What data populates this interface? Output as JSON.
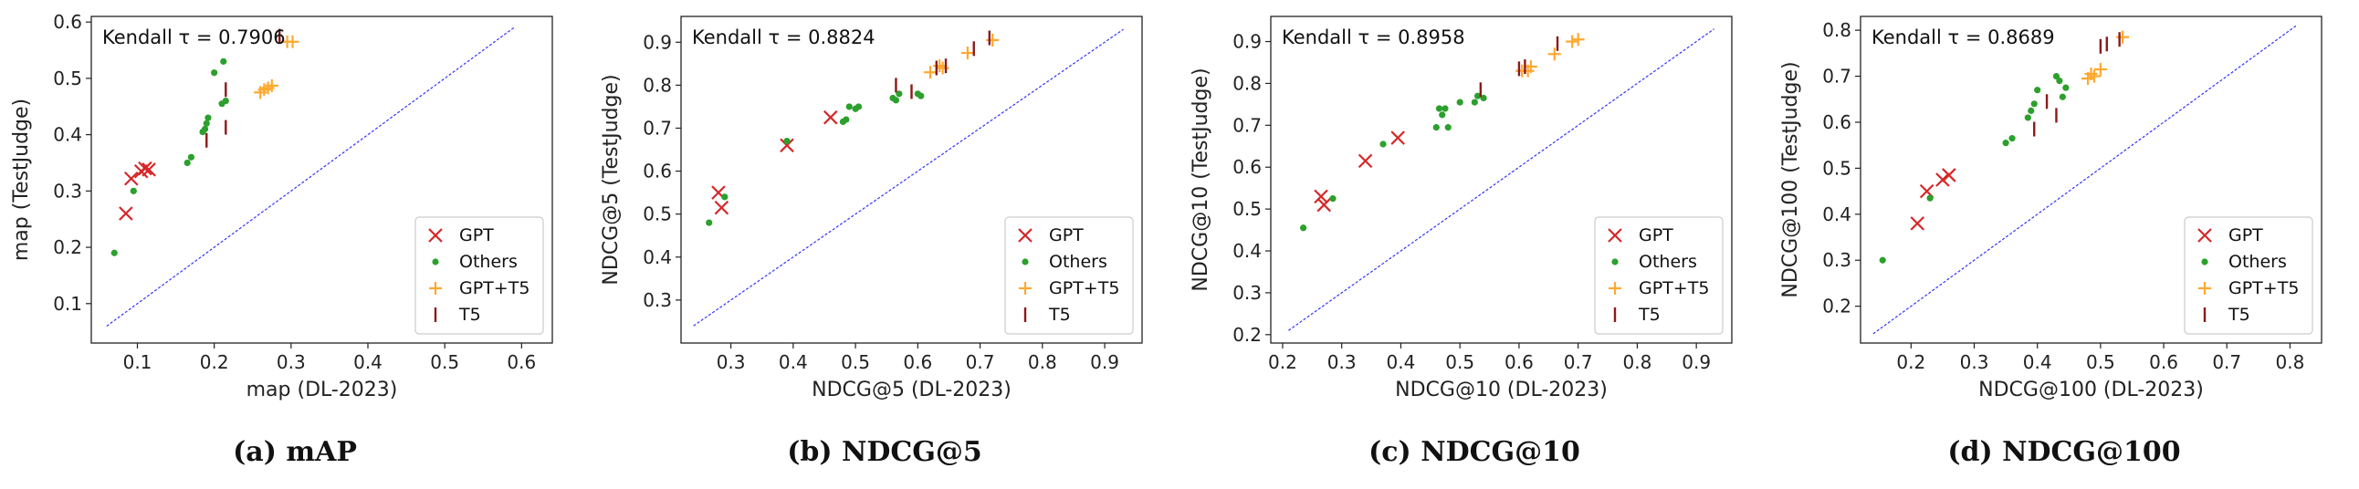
{
  "chart_data": [
    {
      "type": "scatter",
      "caption": "(a) mAP",
      "annotation": "Kendall τ = 0.7906",
      "xlabel": "map (DL-2023)",
      "ylabel": "map (TestJudge)",
      "xlim": [
        0.04,
        0.64
      ],
      "ylim": [
        0.03,
        0.61
      ],
      "xticks": [
        "0.1",
        "0.2",
        "0.3",
        "0.4",
        "0.5",
        "0.6"
      ],
      "xtick_values": [
        0.1,
        0.2,
        0.3,
        0.4,
        0.5,
        0.6
      ],
      "yticks": [
        "0.1",
        "0.2",
        "0.3",
        "0.4",
        "0.5",
        "0.6"
      ],
      "ytick_values": [
        0.1,
        0.2,
        0.3,
        0.4,
        0.5,
        0.6
      ],
      "diagonal": [
        0.06,
        0.59
      ],
      "legend": [
        "GPT",
        "Others",
        "GPT+T5",
        "T5"
      ],
      "legend_position": "lower-right",
      "series": [
        {
          "name": "GPT",
          "marker": "x",
          "color": "#d62728",
          "x": [
            0.085,
            0.092,
            0.105,
            0.11,
            0.115
          ],
          "y": [
            0.26,
            0.322,
            0.335,
            0.34,
            0.338
          ]
        },
        {
          "name": "Others",
          "marker": "dot",
          "color": "#2ca02c",
          "x": [
            0.07,
            0.095,
            0.165,
            0.17,
            0.185,
            0.188,
            0.19,
            0.192,
            0.2,
            0.21,
            0.212,
            0.215
          ],
          "y": [
            0.19,
            0.3,
            0.35,
            0.36,
            0.405,
            0.41,
            0.42,
            0.43,
            0.51,
            0.455,
            0.53,
            0.46
          ]
        },
        {
          "name": "GPT+T5",
          "marker": "plus",
          "color": "#ffa82e",
          "x": [
            0.26,
            0.265,
            0.27,
            0.275,
            0.295,
            0.302
          ],
          "y": [
            0.475,
            0.48,
            0.483,
            0.487,
            0.565,
            0.565
          ]
        },
        {
          "name": "T5",
          "marker": "bar",
          "color": "#8c1a1a",
          "x": [
            0.19,
            0.215,
            0.215,
            0.285
          ],
          "y": [
            0.39,
            0.413,
            0.48,
            0.575
          ]
        }
      ]
    },
    {
      "type": "scatter",
      "caption": "(b) NDCG@5",
      "annotation": "Kendall τ = 0.8824",
      "xlabel": "NDCG@5 (DL-2023)",
      "ylabel": "NDCG@5 (TestJudge)",
      "xlim": [
        0.22,
        0.96
      ],
      "ylim": [
        0.2,
        0.96
      ],
      "xticks": [
        "0.3",
        "0.4",
        "0.5",
        "0.6",
        "0.7",
        "0.8",
        "0.9"
      ],
      "xtick_values": [
        0.3,
        0.4,
        0.5,
        0.6,
        0.7,
        0.8,
        0.9
      ],
      "yticks": [
        "0.3",
        "0.4",
        "0.5",
        "0.6",
        "0.7",
        "0.8",
        "0.9"
      ],
      "ytick_values": [
        0.3,
        0.4,
        0.5,
        0.6,
        0.7,
        0.8,
        0.9
      ],
      "diagonal": [
        0.24,
        0.93
      ],
      "legend": [
        "GPT",
        "Others",
        "GPT+T5",
        "T5"
      ],
      "legend_position": "lower-right",
      "series": [
        {
          "name": "GPT",
          "marker": "x",
          "color": "#d62728",
          "x": [
            0.28,
            0.285,
            0.39,
            0.46
          ],
          "y": [
            0.55,
            0.515,
            0.66,
            0.725
          ]
        },
        {
          "name": "Others",
          "marker": "dot",
          "color": "#2ca02c",
          "x": [
            0.265,
            0.29,
            0.39,
            0.48,
            0.485,
            0.49,
            0.5,
            0.505,
            0.56,
            0.565,
            0.57,
            0.6,
            0.605
          ],
          "y": [
            0.48,
            0.54,
            0.67,
            0.715,
            0.72,
            0.75,
            0.745,
            0.75,
            0.77,
            0.765,
            0.78,
            0.78,
            0.775
          ]
        },
        {
          "name": "GPT+T5",
          "marker": "plus",
          "color": "#ffa82e",
          "x": [
            0.62,
            0.635,
            0.64,
            0.68,
            0.72
          ],
          "y": [
            0.83,
            0.845,
            0.84,
            0.875,
            0.905
          ]
        },
        {
          "name": "T5",
          "marker": "bar",
          "color": "#8c1a1a",
          "x": [
            0.565,
            0.59,
            0.63,
            0.645,
            0.69,
            0.715
          ],
          "y": [
            0.8,
            0.785,
            0.84,
            0.845,
            0.885,
            0.91
          ]
        }
      ]
    },
    {
      "type": "scatter",
      "caption": "(c) NDCG@10",
      "annotation": "Kendall τ = 0.8958",
      "xlabel": "NDCG@10 (DL-2023)",
      "ylabel": "NDCG@10 (TestJudge)",
      "xlim": [
        0.18,
        0.96
      ],
      "ylim": [
        0.18,
        0.96
      ],
      "xticks": [
        "0.2",
        "0.3",
        "0.4",
        "0.5",
        "0.6",
        "0.7",
        "0.8",
        "0.9"
      ],
      "xtick_values": [
        0.2,
        0.3,
        0.4,
        0.5,
        0.6,
        0.7,
        0.8,
        0.9
      ],
      "yticks": [
        "0.2",
        "0.3",
        "0.4",
        "0.5",
        "0.6",
        "0.7",
        "0.8",
        "0.9"
      ],
      "ytick_values": [
        0.2,
        0.3,
        0.4,
        0.5,
        0.6,
        0.7,
        0.8,
        0.9
      ],
      "diagonal": [
        0.21,
        0.93
      ],
      "legend": [
        "GPT",
        "Others",
        "GPT+T5",
        "T5"
      ],
      "legend_position": "lower-right",
      "series": [
        {
          "name": "GPT",
          "marker": "x",
          "color": "#d62728",
          "x": [
            0.265,
            0.27,
            0.34,
            0.395
          ],
          "y": [
            0.53,
            0.51,
            0.615,
            0.67
          ]
        },
        {
          "name": "Others",
          "marker": "dot",
          "color": "#2ca02c",
          "x": [
            0.235,
            0.285,
            0.37,
            0.46,
            0.465,
            0.47,
            0.475,
            0.48,
            0.5,
            0.525,
            0.53,
            0.54
          ],
          "y": [
            0.455,
            0.525,
            0.655,
            0.695,
            0.74,
            0.725,
            0.74,
            0.695,
            0.755,
            0.755,
            0.77,
            0.765
          ]
        },
        {
          "name": "GPT+T5",
          "marker": "plus",
          "color": "#ffa82e",
          "x": [
            0.605,
            0.615,
            0.62,
            0.66,
            0.69,
            0.7
          ],
          "y": [
            0.83,
            0.83,
            0.84,
            0.87,
            0.9,
            0.905
          ]
        },
        {
          "name": "T5",
          "marker": "bar",
          "color": "#8c1a1a",
          "x": [
            0.535,
            0.6,
            0.61,
            0.665
          ],
          "y": [
            0.785,
            0.835,
            0.84,
            0.895
          ]
        }
      ]
    },
    {
      "type": "scatter",
      "caption": "(d) NDCG@100",
      "annotation": "Kendall τ = 0.8689",
      "xlabel": "NDCG@100 (DL-2023)",
      "ylabel": "NDCG@100 (TestJudge)",
      "xlim": [
        0.12,
        0.85
      ],
      "ylim": [
        0.12,
        0.83
      ],
      "xticks": [
        "0.2",
        "0.3",
        "0.4",
        "0.5",
        "0.6",
        "0.7",
        "0.8"
      ],
      "xtick_values": [
        0.2,
        0.3,
        0.4,
        0.5,
        0.6,
        0.7,
        0.8
      ],
      "yticks": [
        "0.2",
        "0.3",
        "0.4",
        "0.5",
        "0.6",
        "0.7",
        "0.8"
      ],
      "ytick_values": [
        0.2,
        0.3,
        0.4,
        0.5,
        0.6,
        0.7,
        0.8
      ],
      "diagonal": [
        0.14,
        0.81
      ],
      "legend": [
        "GPT",
        "Others",
        "GPT+T5",
        "T5"
      ],
      "legend_position": "lower-right",
      "series": [
        {
          "name": "GPT",
          "marker": "x",
          "color": "#d62728",
          "x": [
            0.21,
            0.225,
            0.25,
            0.26
          ],
          "y": [
            0.38,
            0.45,
            0.475,
            0.485
          ]
        },
        {
          "name": "Others",
          "marker": "dot",
          "color": "#2ca02c",
          "x": [
            0.155,
            0.23,
            0.35,
            0.36,
            0.385,
            0.39,
            0.395,
            0.4,
            0.43,
            0.435,
            0.44,
            0.445
          ],
          "y": [
            0.3,
            0.435,
            0.555,
            0.565,
            0.61,
            0.625,
            0.64,
            0.67,
            0.7,
            0.69,
            0.655,
            0.675
          ]
        },
        {
          "name": "GPT+T5",
          "marker": "plus",
          "color": "#ffa82e",
          "x": [
            0.48,
            0.485,
            0.49,
            0.5,
            0.535
          ],
          "y": [
            0.695,
            0.705,
            0.7,
            0.715,
            0.785
          ]
        },
        {
          "name": "T5",
          "marker": "bar",
          "color": "#8c1a1a",
          "x": [
            0.395,
            0.415,
            0.43,
            0.5,
            0.51,
            0.53
          ],
          "y": [
            0.585,
            0.645,
            0.615,
            0.765,
            0.77,
            0.78
          ]
        }
      ]
    }
  ]
}
